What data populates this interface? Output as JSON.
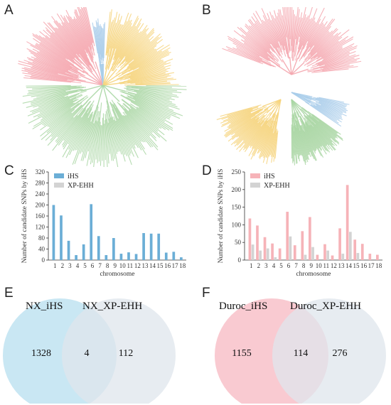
{
  "panels": {
    "a": "A",
    "b": "B",
    "c": "C",
    "d": "D",
    "e": "E",
    "f": "F"
  },
  "colors": {
    "red": "#f4a6ae",
    "blue": "#a9cdea",
    "yellow": "#f6d47c",
    "green": "#a9d6a3",
    "ihs_c": "#6baed6",
    "xpehh": "#d3d3d3",
    "ihs_d": "#f6b3b8",
    "venn_nx_left": "#bfe3f1",
    "venn_right": "#dfe6ec",
    "venn_duroc_left": "#f8c4cc"
  },
  "chart_data": [
    {
      "panel": "C",
      "type": "bar",
      "title": "",
      "xlabel": "chromosome",
      "ylabel": "Number of candidate SNPs by iHS",
      "ylim": [
        0,
        320
      ],
      "yticks": [
        0,
        40,
        80,
        120,
        160,
        200,
        240,
        280,
        320
      ],
      "categories": [
        "1",
        "2",
        "3",
        "4",
        "5",
        "6",
        "7",
        "8",
        "9",
        "10",
        "11",
        "12",
        "13",
        "14",
        "15",
        "16",
        "17",
        "18"
      ],
      "series": [
        {
          "name": "iHS",
          "values": [
            200,
            162,
            70,
            18,
            57,
            203,
            87,
            18,
            80,
            23,
            28,
            22,
            98,
            96,
            96,
            27,
            30,
            10
          ]
        },
        {
          "name": "XP-EHH",
          "values": [
            0,
            0,
            0,
            0,
            0,
            0,
            0,
            0,
            0,
            0,
            0,
            0,
            0,
            0,
            0,
            0,
            0,
            0
          ]
        }
      ],
      "legend": "top-left"
    },
    {
      "panel": "D",
      "type": "bar",
      "title": "",
      "xlabel": "chromosome",
      "ylabel": "Number of candidate SNPs by iHS",
      "ylim": [
        0,
        250
      ],
      "yticks": [
        0,
        50,
        100,
        150,
        200,
        250
      ],
      "categories": [
        "1",
        "2",
        "3",
        "4",
        "5",
        "6",
        "7",
        "8",
        "9",
        "10",
        "11",
        "12",
        "13",
        "14",
        "15",
        "16",
        "17",
        "18"
      ],
      "series": [
        {
          "name": "iHS",
          "values": [
            118,
            98,
            65,
            47,
            33,
            137,
            42,
            82,
            122,
            15,
            45,
            13,
            90,
            213,
            58,
            46,
            18,
            15
          ]
        },
        {
          "name": "XP-EHH",
          "values": [
            44,
            27,
            33,
            8,
            0,
            67,
            0,
            15,
            37,
            0,
            27,
            0,
            18,
            80,
            20,
            0,
            0,
            0
          ]
        }
      ],
      "legend": "top-left"
    }
  ],
  "venn": {
    "e": {
      "left_label": "NX_iHS",
      "right_label": "NX_XP-EHH",
      "left_only": "1328",
      "overlap": "4",
      "right_only": "112"
    },
    "f": {
      "left_label": "Duroc_iHS",
      "right_label": "Duroc_XP-EHH",
      "left_only": "1155",
      "overlap": "114",
      "right_only": "276"
    }
  },
  "trees": {
    "a": {
      "red": 0.28,
      "blue": 0.04,
      "yellow": 0.16,
      "green": 0.52
    },
    "b": {
      "red": 0.45,
      "blue": 0.08,
      "yellow": 0.2,
      "green": 0.27
    }
  }
}
